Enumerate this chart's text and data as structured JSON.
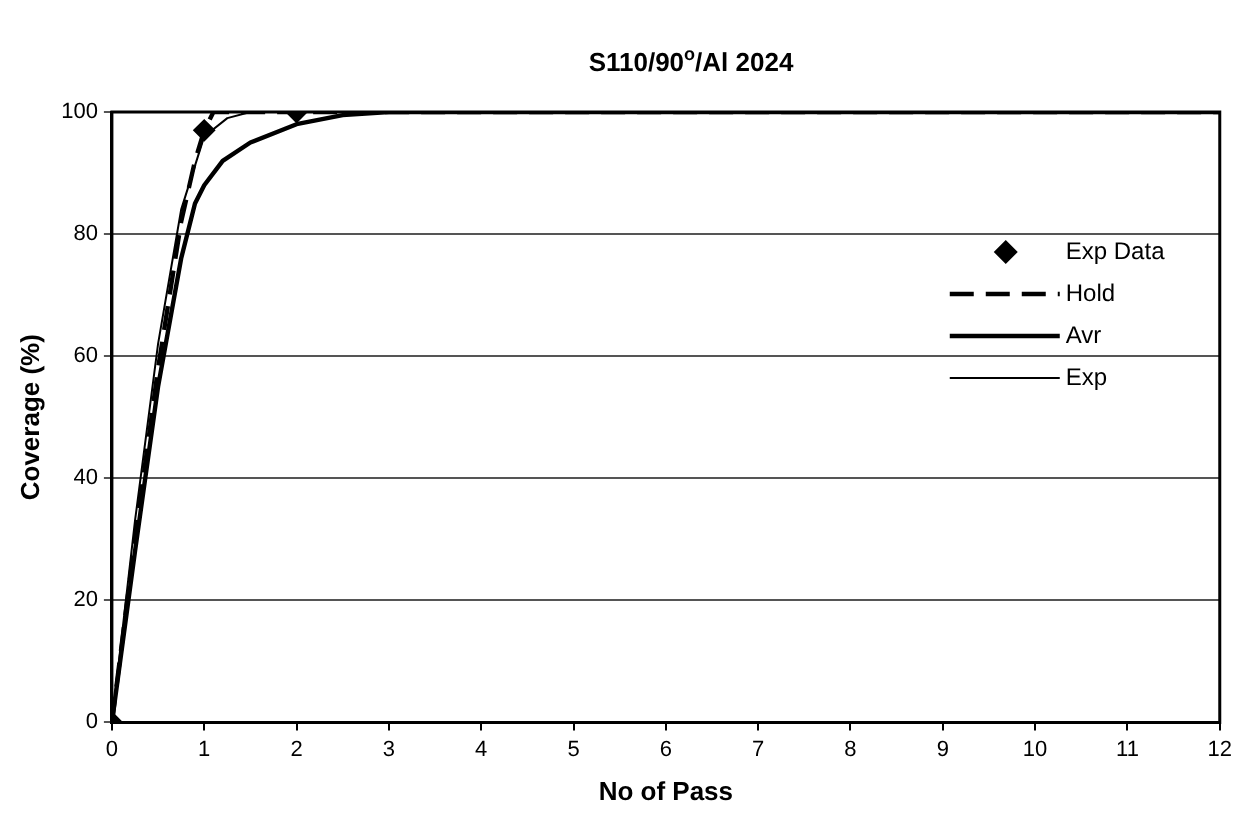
{
  "chart_data": {
    "type": "line",
    "title": "S110/90$^{o}$/Al 2024",
    "xlabel": "No of Pass",
    "ylabel": "Coverage (%)",
    "xlim": [
      0,
      12
    ],
    "ylim": [
      0,
      100
    ],
    "xticks": [
      0,
      1,
      2,
      3,
      4,
      5,
      6,
      7,
      8,
      9,
      10,
      11,
      12
    ],
    "yticks": [
      0,
      20,
      40,
      60,
      80,
      100
    ],
    "grid": "y",
    "legend": "right",
    "series": [
      {
        "name": "Exp Data",
        "type": "scatter",
        "marker": "diamond",
        "color": "#000000",
        "x": [
          0,
          1,
          2
        ],
        "values": [
          0,
          97,
          100
        ]
      },
      {
        "name": "Hold",
        "type": "line",
        "line_style": "dashed",
        "marker": "none",
        "color": "#000000",
        "x": [
          0,
          0.25,
          0.5,
          0.75,
          0.9,
          1.0,
          1.1,
          1.5,
          2,
          3,
          12
        ],
        "values": [
          0,
          30,
          58,
          82,
          92,
          97,
          100,
          100,
          100,
          100,
          100
        ]
      },
      {
        "name": "Avr",
        "type": "line",
        "line_style": "solid",
        "marker": "none",
        "color": "#000000",
        "x": [
          0,
          0.25,
          0.5,
          0.75,
          0.9,
          1.0,
          1.2,
          1.5,
          2,
          2.5,
          3,
          12
        ],
        "values": [
          0,
          28,
          55,
          76,
          85,
          88,
          92,
          95,
          98,
          99.5,
          100,
          100
        ]
      },
      {
        "name": "Exp",
        "type": "line",
        "line_style": "solid",
        "marker": "none",
        "color": "#000000",
        "x": [
          0,
          0.25,
          0.5,
          0.75,
          1.0,
          1.25,
          1.5,
          2,
          12
        ],
        "values": [
          0,
          33,
          62,
          84,
          96,
          99,
          100,
          100,
          100
        ]
      }
    ]
  }
}
